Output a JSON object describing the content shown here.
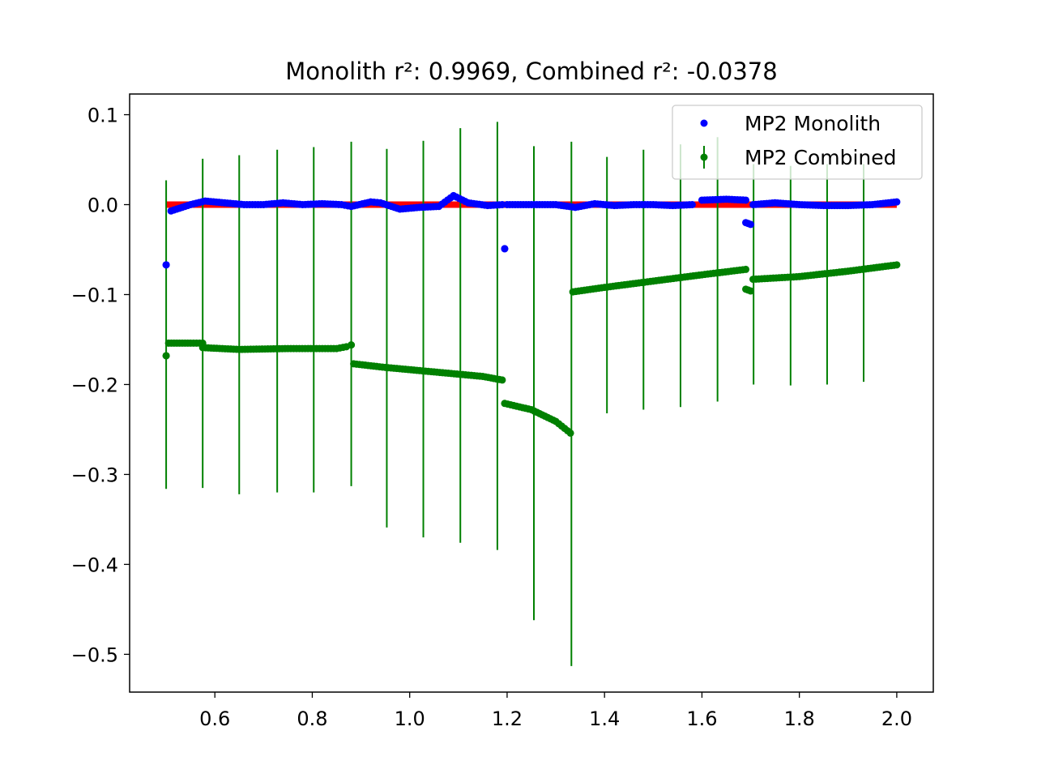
{
  "chart_data": {
    "type": "scatter",
    "title": "Monolith r²: 0.9969, Combined r²: -0.0378",
    "xlabel": "",
    "ylabel": "",
    "xlim": [
      0.425,
      2.075
    ],
    "ylim": [
      -0.542,
      0.123
    ],
    "x_ticks": [
      0.6,
      0.8,
      1.0,
      1.2,
      1.4,
      1.6,
      1.8,
      2.0
    ],
    "x_tick_labels": [
      "0.6",
      "0.8",
      "1.0",
      "1.2",
      "1.4",
      "1.6",
      "1.8",
      "2.0"
    ],
    "y_ticks": [
      0.1,
      0.0,
      -0.1,
      -0.2,
      -0.3,
      -0.4,
      -0.5
    ],
    "y_tick_labels": [
      "0.1",
      "0.0",
      "−0.1",
      "−0.2",
      "−0.3",
      "−0.4",
      "−0.5"
    ],
    "grid": false,
    "legend_position": "top-right",
    "reference_line": {
      "x": [
        0.5,
        2.0
      ],
      "y": [
        0.0,
        0.0
      ],
      "color": "#ff0000"
    },
    "series": [
      {
        "name": "MP2 Monolith",
        "kind": "points",
        "color": "#0000ff",
        "segments": [
          {
            "x": [
              0.5,
              0.5
            ],
            "y": [
              -0.067,
              -0.067
            ]
          },
          {
            "x": [
              0.51,
              0.55,
              0.58,
              0.62,
              0.66,
              0.7,
              0.74,
              0.78,
              0.82,
              0.86,
              0.88,
              0.92,
              0.94,
              0.98,
              1.02,
              1.06,
              1.09,
              1.12,
              1.16,
              1.19
            ],
            "y": [
              -0.007,
              0.0,
              0.004,
              0.002,
              0.0,
              0.0,
              0.002,
              0.0,
              0.001,
              0.0,
              -0.002,
              0.003,
              0.002,
              -0.005,
              -0.003,
              -0.002,
              0.01,
              0.002,
              -0.001,
              0.0
            ]
          },
          {
            "x": [
              1.195,
              1.195
            ],
            "y": [
              -0.049,
              -0.049
            ]
          },
          {
            "x": [
              1.2,
              1.25,
              1.3,
              1.34,
              1.38,
              1.42,
              1.46,
              1.5,
              1.54,
              1.58
            ],
            "y": [
              0.0,
              0.0,
              0.0,
              -0.003,
              0.001,
              -0.001,
              0.0,
              0.0,
              -0.001,
              0.0
            ]
          },
          {
            "x": [
              1.6,
              1.65,
              1.69
            ],
            "y": [
              0.005,
              0.006,
              0.005
            ]
          },
          {
            "x": [
              1.69,
              1.7
            ],
            "y": [
              -0.02,
              -0.022
            ]
          },
          {
            "x": [
              1.705,
              1.75,
              1.8,
              1.85,
              1.9,
              1.95,
              2.0
            ],
            "y": [
              0.0,
              0.002,
              0.0,
              -0.001,
              -0.001,
              0.0,
              0.003
            ]
          }
        ]
      },
      {
        "name": "MP2 Combined",
        "kind": "errorbar",
        "color": "#008000",
        "segments": [
          {
            "x": [
              0.5,
              0.5
            ],
            "y": [
              -0.168,
              -0.168
            ]
          },
          {
            "x": [
              0.505,
              0.55,
              0.575
            ],
            "y": [
              -0.154,
              -0.154,
              -0.154
            ]
          },
          {
            "x": [
              0.575,
              0.65,
              0.75,
              0.85,
              0.87
            ],
            "y": [
              -0.159,
              -0.161,
              -0.16,
              -0.16,
              -0.158
            ]
          },
          {
            "x": [
              0.88,
              0.88
            ],
            "y": [
              -0.156,
              -0.156
            ]
          },
          {
            "x": [
              0.885,
              0.95,
              1.05,
              1.15,
              1.19
            ],
            "y": [
              -0.177,
              -0.181,
              -0.186,
              -0.191,
              -0.195
            ]
          },
          {
            "x": [
              1.195,
              1.25,
              1.3,
              1.33
            ],
            "y": [
              -0.221,
              -0.228,
              -0.241,
              -0.254
            ]
          },
          {
            "x": [
              1.335,
              1.4,
              1.5,
              1.6,
              1.69
            ],
            "y": [
              -0.097,
              -0.092,
              -0.085,
              -0.078,
              -0.072
            ]
          },
          {
            "x": [
              1.69,
              1.7
            ],
            "y": [
              -0.094,
              -0.096
            ]
          },
          {
            "x": [
              1.705,
              1.8,
              1.9,
              2.0
            ],
            "y": [
              -0.083,
              -0.08,
              -0.074,
              -0.067
            ]
          }
        ],
        "error_bars": [
          {
            "x": 0.5,
            "y_low": -0.316,
            "y_high": 0.027
          },
          {
            "x": 0.575,
            "y_low": -0.315,
            "y_high": 0.051
          },
          {
            "x": 0.65,
            "y_low": -0.322,
            "y_high": 0.055
          },
          {
            "x": 0.728,
            "y_low": -0.32,
            "y_high": 0.061
          },
          {
            "x": 0.803,
            "y_low": -0.32,
            "y_high": 0.064
          },
          {
            "x": 0.88,
            "y_low": -0.313,
            "y_high": 0.07
          },
          {
            "x": 0.953,
            "y_low": -0.359,
            "y_high": 0.062
          },
          {
            "x": 1.028,
            "y_low": -0.37,
            "y_high": 0.071
          },
          {
            "x": 1.104,
            "y_low": -0.376,
            "y_high": 0.085
          },
          {
            "x": 1.18,
            "y_low": -0.384,
            "y_high": 0.092
          },
          {
            "x": 1.255,
            "y_low": -0.462,
            "y_high": 0.065
          },
          {
            "x": 1.332,
            "y_low": -0.513,
            "y_high": 0.07
          },
          {
            "x": 1.405,
            "y_low": -0.232,
            "y_high": 0.053
          },
          {
            "x": 1.48,
            "y_low": -0.228,
            "y_high": 0.061
          },
          {
            "x": 1.556,
            "y_low": -0.225,
            "y_high": 0.067
          },
          {
            "x": 1.632,
            "y_low": -0.219,
            "y_high": 0.075
          },
          {
            "x": 1.706,
            "y_low": -0.2,
            "y_high": 0.045
          },
          {
            "x": 1.782,
            "y_low": -0.201,
            "y_high": 0.043
          },
          {
            "x": 1.857,
            "y_low": -0.2,
            "y_high": 0.045
          },
          {
            "x": 1.932,
            "y_low": -0.197,
            "y_high": 0.045
          }
        ]
      }
    ]
  }
}
